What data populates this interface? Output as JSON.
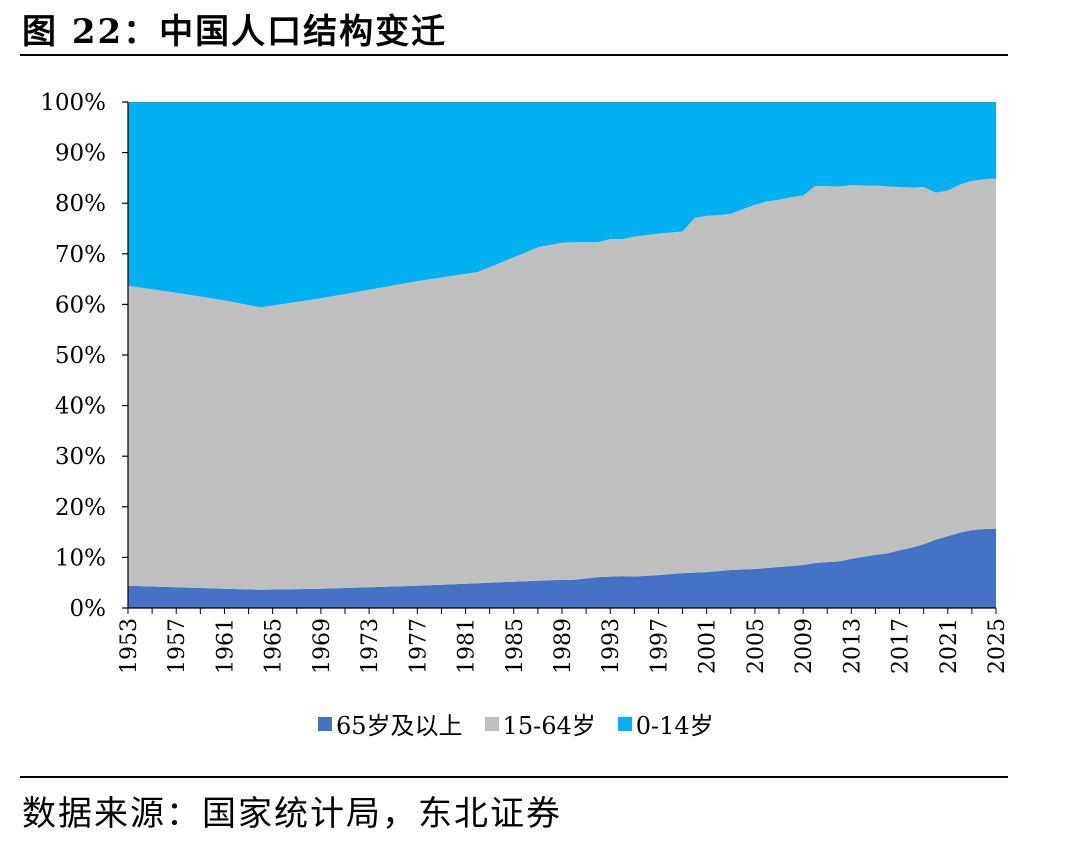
{
  "figure": {
    "title": "图 22：中国人口结构变迁",
    "source": "数据来源：国家统计局，东北证券"
  },
  "chart_data": {
    "type": "area",
    "stacked": "percent",
    "title": "",
    "xlabel": "",
    "ylabel": "",
    "ylim": [
      0,
      100
    ],
    "y_ticks": [
      "0%",
      "10%",
      "20%",
      "30%",
      "40%",
      "50%",
      "60%",
      "70%",
      "80%",
      "90%",
      "100%"
    ],
    "x_ticks": [
      "1953",
      "1957",
      "1961",
      "1965",
      "1969",
      "1973",
      "1977",
      "1981",
      "1985",
      "1989",
      "1993",
      "1997",
      "2001",
      "2005",
      "2009",
      "2013",
      "2017",
      "2021",
      "2025"
    ],
    "legend_position": "bottom",
    "x": [
      1953,
      1957,
      1961,
      1964,
      1969,
      1973,
      1977,
      1982,
      1985,
      1987,
      1989,
      1990,
      1992,
      1993,
      1994,
      1995,
      1997,
      1999,
      2000,
      2001,
      2002,
      2003,
      2005,
      2006,
      2007,
      2008,
      2009,
      2010,
      2012,
      2013,
      2014,
      2015,
      2016,
      2017,
      2018,
      2019,
      2020,
      2021,
      2022,
      2023,
      2024,
      2025
    ],
    "series": [
      {
        "name": "65岁及以上",
        "color": "#4472C4",
        "values": [
          4.4,
          4.1,
          3.8,
          3.6,
          3.8,
          4.1,
          4.4,
          4.9,
          5.2,
          5.4,
          5.6,
          5.6,
          6.1,
          6.2,
          6.3,
          6.2,
          6.5,
          6.9,
          7.0,
          7.1,
          7.3,
          7.5,
          7.7,
          7.9,
          8.1,
          8.3,
          8.5,
          8.9,
          9.2,
          9.7,
          10.1,
          10.5,
          10.8,
          11.4,
          11.9,
          12.6,
          13.5,
          14.2,
          14.9,
          15.4,
          15.6,
          15.7
        ]
      },
      {
        "name": "15-64岁",
        "color": "#BFBFBF",
        "values": [
          59.3,
          58.2,
          57.0,
          55.8,
          57.4,
          58.8,
          60.2,
          61.5,
          64.1,
          65.9,
          66.6,
          66.7,
          66.2,
          66.7,
          66.6,
          67.2,
          67.5,
          67.5,
          70.1,
          70.4,
          70.3,
          70.4,
          72.0,
          72.5,
          72.6,
          72.9,
          73.0,
          74.5,
          74.1,
          73.9,
          73.4,
          73.0,
          72.5,
          71.8,
          71.2,
          70.6,
          68.6,
          68.3,
          68.8,
          69.0,
          69.1,
          69.2
        ]
      },
      {
        "name": "0-14岁",
        "color": "#00B0F0",
        "values": [
          36.3,
          37.7,
          39.2,
          40.6,
          38.8,
          37.1,
          35.4,
          33.6,
          30.7,
          28.7,
          27.8,
          27.7,
          27.7,
          27.1,
          27.1,
          26.6,
          26.0,
          25.6,
          22.9,
          22.5,
          22.4,
          22.1,
          20.3,
          19.6,
          19.3,
          18.8,
          18.5,
          16.6,
          16.7,
          16.4,
          16.5,
          16.5,
          16.7,
          16.8,
          16.9,
          16.8,
          17.9,
          17.5,
          16.3,
          15.6,
          15.3,
          15.1
        ]
      }
    ]
  }
}
